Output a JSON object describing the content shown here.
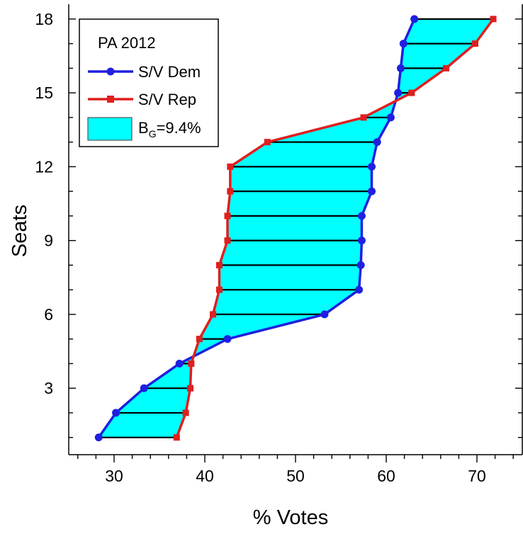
{
  "chart_data": {
    "type": "line",
    "title": "",
    "xlabel": "% Votes",
    "ylabel": "Seats",
    "xlim": [
      25,
      75
    ],
    "ylim": [
      0.3,
      18.6
    ],
    "xticks": [
      30,
      40,
      50,
      60,
      70
    ],
    "yticks": [
      3,
      6,
      9,
      12,
      15,
      18
    ],
    "grid": false,
    "legend": {
      "title": "PA 2012",
      "placement": "top-left",
      "entries": [
        {
          "label": "S/V Dem",
          "series": 0
        },
        {
          "label": "S/V Rep",
          "series": 1
        },
        {
          "label_base": "B",
          "label_sub": "G",
          "label_rest": "=9.4%",
          "fill": "area"
        }
      ]
    },
    "series": [
      {
        "name": "S/V Dem",
        "color": "#1f1fe0",
        "marker": "circle",
        "y": [
          1,
          2,
          3,
          4,
          5,
          6,
          7,
          8,
          9,
          10,
          11,
          12,
          13,
          14,
          15,
          16,
          17,
          18
        ],
        "x": [
          28.3,
          30.2,
          33.3,
          37.2,
          42.5,
          53.2,
          57.0,
          57.2,
          57.3,
          57.3,
          58.4,
          58.4,
          59.0,
          60.5,
          61.3,
          61.6,
          61.9,
          63.1
        ]
      },
      {
        "name": "S/V Rep",
        "color": "#e01f1f",
        "marker": "square",
        "y": [
          1,
          2,
          3,
          4,
          5,
          6,
          7,
          8,
          9,
          10,
          11,
          12,
          13,
          14,
          15,
          16,
          17,
          18
        ],
        "x": [
          36.9,
          37.9,
          38.4,
          38.5,
          39.4,
          40.9,
          41.6,
          41.6,
          42.5,
          42.5,
          42.8,
          42.8,
          46.9,
          57.5,
          62.8,
          66.6,
          69.8,
          71.8
        ]
      }
    ],
    "area_fill_color": "#00ffff",
    "area_outline_color": "#555555"
  }
}
